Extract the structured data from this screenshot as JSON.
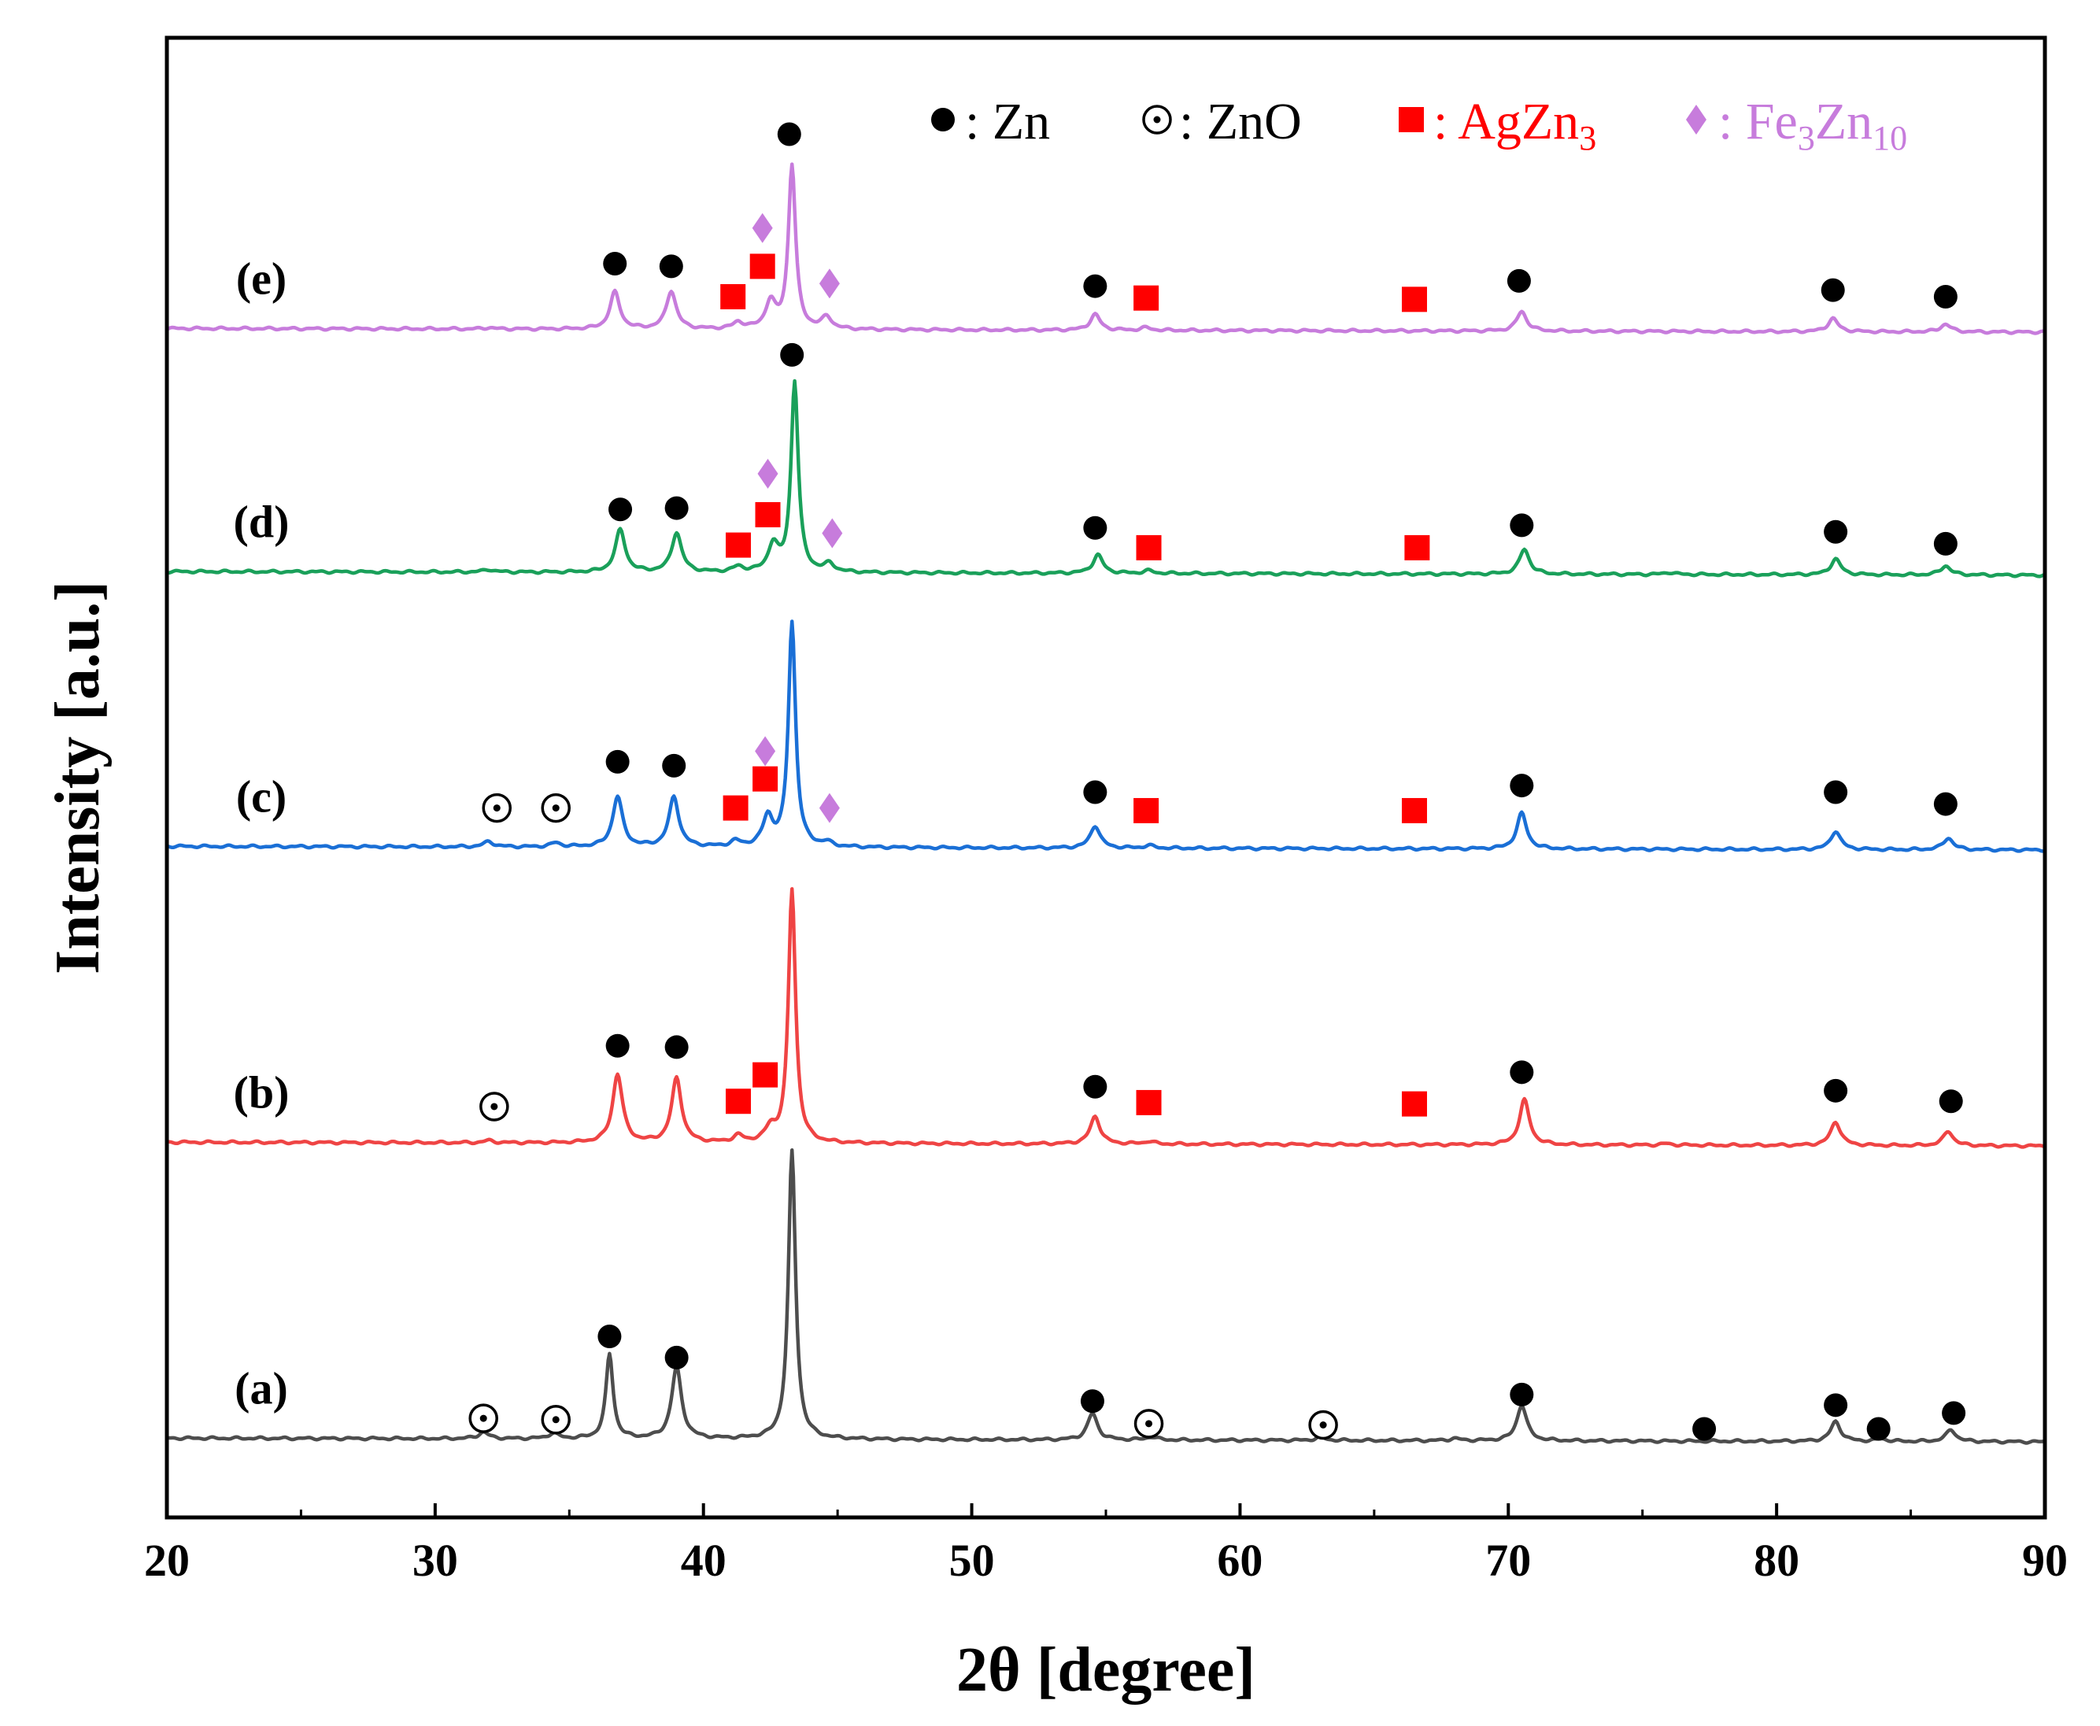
{
  "chart_data": {
    "type": "line",
    "title": "",
    "xlabel": "2θ [degree]",
    "ylabel": "Intensity [a.u.]",
    "xlim": [
      20,
      90
    ],
    "xticks": [
      20,
      30,
      40,
      50,
      60,
      70,
      80,
      90
    ],
    "tick_labels": [
      "20",
      "30",
      "40",
      "50",
      "60",
      "70",
      "80",
      "90"
    ],
    "colors": {
      "Zn": "#000000",
      "ZnO": "#000000",
      "AgZn3": "#ff0000",
      "Fe3Zn10": "#c77cdc"
    },
    "legend": [
      {
        "key": "Zn",
        "marker": "filled-circle",
        "sep": ": ",
        "base": "Zn",
        "sub": "",
        "tail": "",
        "tail_sub": ""
      },
      {
        "key": "ZnO",
        "marker": "dotted-circle",
        "sep": ": ",
        "base": "ZnO",
        "sub": "",
        "tail": "",
        "tail_sub": ""
      },
      {
        "key": "AgZn3",
        "marker": "square",
        "sep": ": ",
        "base": "AgZn",
        "sub": "3",
        "tail": "",
        "tail_sub": ""
      },
      {
        "key": "Fe3Zn10",
        "marker": "diamond",
        "sep": ": ",
        "base": "Fe",
        "sub": "3",
        "tail": "Zn",
        "tail_sub": "10"
      }
    ],
    "series": [
      {
        "name": "(a)",
        "color": "#4d4d4d",
        "baseline": 0.5,
        "peaks": [
          [
            31.8,
            0.25
          ],
          [
            34.4,
            0.2
          ],
          [
            36.5,
            3.2
          ],
          [
            39.0,
            2.7
          ],
          [
            43.3,
            10.9
          ],
          [
            54.5,
            1.0
          ],
          [
            56.7,
            0.12
          ],
          [
            63.0,
            0.12
          ],
          [
            68.0,
            0.08
          ],
          [
            70.5,
            1.35
          ],
          [
            82.2,
            0.75
          ],
          [
            83.9,
            0.1
          ],
          [
            86.5,
            0.45
          ]
        ],
        "markers": [
          {
            "type": "ZnO",
            "x": 31.8,
            "y": 1.25
          },
          {
            "type": "ZnO",
            "x": 34.5,
            "y": 1.2
          },
          {
            "type": "Zn",
            "x": 36.5,
            "y": 4.35
          },
          {
            "type": "Zn",
            "x": 39.0,
            "y": 3.55
          },
          {
            "type": "Zn",
            "x": 54.5,
            "y": 1.9
          },
          {
            "type": "ZnO",
            "x": 56.6,
            "y": 1.05
          },
          {
            "type": "ZnO",
            "x": 63.1,
            "y": 1.0
          },
          {
            "type": "Zn",
            "x": 70.5,
            "y": 2.15
          },
          {
            "type": "Zn",
            "x": 77.3,
            "y": 0.85
          },
          {
            "type": "Zn",
            "x": 82.2,
            "y": 1.75
          },
          {
            "type": "Zn",
            "x": 83.8,
            "y": 0.85
          },
          {
            "type": "Zn",
            "x": 86.6,
            "y": 1.45
          }
        ]
      },
      {
        "name": "(b)",
        "color": "#ef4444",
        "baseline": 11.7,
        "peaks": [
          [
            32.0,
            0.08
          ],
          [
            36.8,
            2.6
          ],
          [
            39.0,
            2.45
          ],
          [
            41.3,
            0.25
          ],
          [
            42.5,
            0.5
          ],
          [
            43.3,
            9.6
          ],
          [
            54.6,
            1.05
          ],
          [
            56.6,
            0.1
          ],
          [
            70.6,
            1.7
          ],
          [
            75.9,
            0.06
          ],
          [
            82.2,
            0.9
          ],
          [
            86.4,
            0.55
          ]
        ],
        "markers": [
          {
            "type": "ZnO",
            "x": 32.2,
            "y": 13.05
          },
          {
            "type": "Zn",
            "x": 36.8,
            "y": 15.35
          },
          {
            "type": "Zn",
            "x": 39.0,
            "y": 15.3
          },
          {
            "type": "AgZn3",
            "x": 41.3,
            "y": 13.25
          },
          {
            "type": "AgZn3",
            "x": 42.3,
            "y": 14.25
          },
          {
            "type": "Zn",
            "x": 54.6,
            "y": 13.8
          },
          {
            "type": "AgZn3",
            "x": 56.6,
            "y": 13.2
          },
          {
            "type": "AgZn3",
            "x": 66.5,
            "y": 13.15
          },
          {
            "type": "Zn",
            "x": 70.5,
            "y": 14.35
          },
          {
            "type": "Zn",
            "x": 82.2,
            "y": 13.65
          },
          {
            "type": "Zn",
            "x": 86.5,
            "y": 13.25
          }
        ]
      },
      {
        "name": "(c)",
        "color": "#1a6fd6",
        "baseline": 22.9,
        "peaks": [
          [
            32.0,
            0.2
          ],
          [
            34.5,
            0.15
          ],
          [
            36.8,
            1.9
          ],
          [
            38.9,
            1.9
          ],
          [
            41.2,
            0.2
          ],
          [
            42.4,
            1.1
          ],
          [
            43.3,
            8.5
          ],
          [
            44.6,
            0.15
          ],
          [
            54.6,
            0.85
          ],
          [
            56.6,
            0.1
          ],
          [
            70.5,
            1.35
          ],
          [
            82.2,
            0.7
          ],
          [
            86.4,
            0.45
          ]
        ],
        "markers": [
          {
            "type": "ZnO",
            "x": 32.3,
            "y": 24.35
          },
          {
            "type": "ZnO",
            "x": 34.5,
            "y": 24.35
          },
          {
            "type": "Zn",
            "x": 36.8,
            "y": 26.1
          },
          {
            "type": "Zn",
            "x": 38.9,
            "y": 25.95
          },
          {
            "type": "AgZn3",
            "x": 41.2,
            "y": 24.35
          },
          {
            "type": "AgZn3",
            "x": 42.3,
            "y": 25.45
          },
          {
            "type": "Fe3Zn10",
            "x": 42.3,
            "y": 26.5
          },
          {
            "type": "Fe3Zn10",
            "x": 44.7,
            "y": 24.35
          },
          {
            "type": "Zn",
            "x": 54.6,
            "y": 24.95
          },
          {
            "type": "AgZn3",
            "x": 56.5,
            "y": 24.25
          },
          {
            "type": "AgZn3",
            "x": 66.5,
            "y": 24.25
          },
          {
            "type": "Zn",
            "x": 70.5,
            "y": 25.2
          },
          {
            "type": "Zn",
            "x": 82.2,
            "y": 24.95
          },
          {
            "type": "Zn",
            "x": 86.3,
            "y": 24.5
          }
        ]
      },
      {
        "name": "(d)",
        "color": "#1aa05a",
        "baseline": 33.3,
        "peaks": [
          [
            32.0,
            0.1
          ],
          [
            36.9,
            1.6
          ],
          [
            39.0,
            1.5
          ],
          [
            41.3,
            0.2
          ],
          [
            42.6,
            1.0
          ],
          [
            43.4,
            7.2
          ],
          [
            44.7,
            0.3
          ],
          [
            54.7,
            0.7
          ],
          [
            56.6,
            0.1
          ],
          [
            70.6,
            0.95
          ],
          [
            76.0,
            0.08
          ],
          [
            82.2,
            0.6
          ],
          [
            86.3,
            0.35
          ]
        ],
        "markers": [
          {
            "type": "Zn",
            "x": 36.9,
            "y": 35.65
          },
          {
            "type": "Zn",
            "x": 39.0,
            "y": 35.7
          },
          {
            "type": "AgZn3",
            "x": 41.3,
            "y": 34.3
          },
          {
            "type": "AgZn3",
            "x": 42.4,
            "y": 35.45
          },
          {
            "type": "Fe3Zn10",
            "x": 42.4,
            "y": 37.0
          },
          {
            "type": "Fe3Zn10",
            "x": 44.8,
            "y": 34.75
          },
          {
            "type": "Zn",
            "x": 43.3,
            "y": 41.5
          },
          {
            "type": "Zn",
            "x": 54.6,
            "y": 34.95
          },
          {
            "type": "AgZn3",
            "x": 56.6,
            "y": 34.2
          },
          {
            "type": "AgZn3",
            "x": 66.6,
            "y": 34.2
          },
          {
            "type": "Zn",
            "x": 70.5,
            "y": 35.05
          },
          {
            "type": "Zn",
            "x": 82.2,
            "y": 34.8
          },
          {
            "type": "Zn",
            "x": 86.3,
            "y": 34.35
          }
        ]
      },
      {
        "name": "(e)",
        "color": "#c77cdc",
        "baseline": 42.5,
        "peaks": [
          [
            32.0,
            0.05
          ],
          [
            36.7,
            1.4
          ],
          [
            38.8,
            1.45
          ],
          [
            41.3,
            0.25
          ],
          [
            42.5,
            1.0
          ],
          [
            43.3,
            6.2
          ],
          [
            44.6,
            0.45
          ],
          [
            54.6,
            0.6
          ],
          [
            56.5,
            0.1
          ],
          [
            70.5,
            0.75
          ],
          [
            82.1,
            0.5
          ],
          [
            86.3,
            0.3
          ]
        ],
        "markers": [
          {
            "type": "Zn",
            "x": 36.7,
            "y": 44.95
          },
          {
            "type": "Zn",
            "x": 38.8,
            "y": 44.85
          },
          {
            "type": "AgZn3",
            "x": 41.1,
            "y": 43.7
          },
          {
            "type": "AgZn3",
            "x": 42.2,
            "y": 44.85
          },
          {
            "type": "Fe3Zn10",
            "x": 42.2,
            "y": 46.3
          },
          {
            "type": "Fe3Zn10",
            "x": 44.7,
            "y": 44.2
          },
          {
            "type": "Zn",
            "x": 43.2,
            "y": 49.85
          },
          {
            "type": "Zn",
            "x": 54.6,
            "y": 44.1
          },
          {
            "type": "AgZn3",
            "x": 56.5,
            "y": 43.65
          },
          {
            "type": "AgZn3",
            "x": 66.5,
            "y": 43.6
          },
          {
            "type": "Zn",
            "x": 70.4,
            "y": 44.3
          },
          {
            "type": "Zn",
            "x": 82.1,
            "y": 43.95
          },
          {
            "type": "Zn",
            "x": 86.3,
            "y": 43.7
          }
        ]
      }
    ]
  }
}
